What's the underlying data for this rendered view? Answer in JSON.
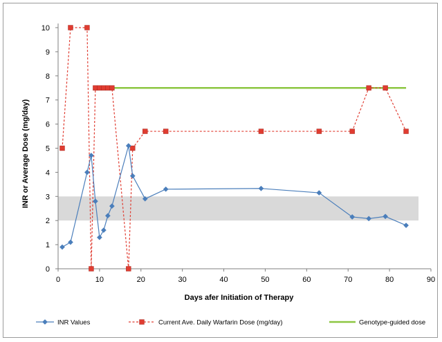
{
  "chart_data": {
    "type": "line",
    "title": "",
    "xlabel": "Days afer Initiation of Therapy",
    "ylabel": "INR or Average Dose (mg/day)",
    "xlim": [
      0,
      90
    ],
    "ylim": [
      0,
      10
    ],
    "x_ticks": [
      "0",
      "10",
      "20",
      "30",
      "40",
      "50",
      "60",
      "70",
      "80",
      "90"
    ],
    "y_ticks": [
      "0",
      "1",
      "2",
      "3",
      "4",
      "5",
      "6",
      "7",
      "8",
      "9",
      "10"
    ],
    "grid": false,
    "legend_position": "bottom",
    "therapeutic_band": {
      "y_range": [
        2,
        3
      ],
      "x_range": [
        0,
        87
      ],
      "color": "#d9d9d9"
    },
    "series": [
      {
        "name": "INR Values",
        "style": "solid",
        "marker": "diamond",
        "color": "#4a7ebb",
        "points": [
          [
            1,
            0.9
          ],
          [
            3,
            1.1
          ],
          [
            7,
            4.0
          ],
          [
            8,
            4.7
          ],
          [
            9,
            2.8
          ],
          [
            10,
            1.3
          ],
          [
            11,
            1.6
          ],
          [
            12,
            2.2
          ],
          [
            13,
            2.6
          ],
          [
            17,
            5.1
          ],
          [
            18,
            3.85
          ],
          [
            21,
            2.9
          ],
          [
            26,
            3.3
          ],
          [
            49,
            3.33
          ],
          [
            63,
            3.15
          ],
          [
            71,
            2.15
          ],
          [
            75,
            2.08
          ],
          [
            79,
            2.17
          ],
          [
            84,
            1.8
          ]
        ]
      },
      {
        "name": "Current Ave. Daily Warfarin Dose (mg/day)",
        "style": "dashed",
        "marker": "square",
        "color": "#e03c31",
        "points": [
          [
            1,
            5.0
          ],
          [
            3,
            10.0
          ],
          [
            7,
            10.0
          ],
          [
            8,
            0.0
          ],
          [
            9,
            7.5
          ],
          [
            10,
            7.5
          ],
          [
            11,
            7.5
          ],
          [
            12,
            7.5
          ],
          [
            13,
            7.5
          ],
          [
            17,
            0.0
          ],
          [
            18,
            5.0
          ],
          [
            21,
            5.7
          ],
          [
            26,
            5.7
          ],
          [
            49,
            5.7
          ],
          [
            63,
            5.7
          ],
          [
            71,
            5.7
          ],
          [
            75,
            7.5
          ],
          [
            79,
            7.5
          ],
          [
            84,
            5.7
          ]
        ]
      },
      {
        "name": "Genotype-guided dose",
        "style": "solid",
        "marker": "none",
        "color": "#8cc641",
        "points": [
          [
            9,
            7.5
          ],
          [
            84,
            7.5
          ]
        ]
      }
    ]
  }
}
